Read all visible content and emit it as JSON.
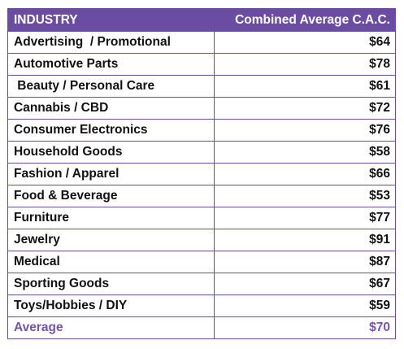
{
  "chart_data": {
    "type": "table",
    "columns": [
      "INDUSTRY",
      "Combined Average C.A.C."
    ],
    "rows": [
      {
        "industry": "Advertising  / Promotional",
        "value": "$64"
      },
      {
        "industry": "Automotive Parts",
        "value": "$78"
      },
      {
        "industry": " Beauty / Personal Care",
        "value": "$61"
      },
      {
        "industry": "Cannabis / CBD",
        "value": "$72"
      },
      {
        "industry": "Consumer Electronics",
        "value": "$76"
      },
      {
        "industry": "Household Goods",
        "value": "$58"
      },
      {
        "industry": "Fashion / Apparel",
        "value": "$66"
      },
      {
        "industry": "Food & Beverage",
        "value": "$53"
      },
      {
        "industry": "Furniture",
        "value": "$77"
      },
      {
        "industry": "Jewelry",
        "value": "$91"
      },
      {
        "industry": "Medical",
        "value": "$87"
      },
      {
        "industry": "Sporting Goods",
        "value": "$67"
      },
      {
        "industry": "Toys/Hobbies / DIY",
        "value": "$59"
      }
    ],
    "summary": {
      "industry": "Average",
      "value": "$70"
    }
  },
  "colors": {
    "header_bg": "#6a4ca4",
    "header_text": "#ffffff",
    "border": "#6a4ca4",
    "average_text": "#7453b3",
    "body_text": "#111111"
  }
}
